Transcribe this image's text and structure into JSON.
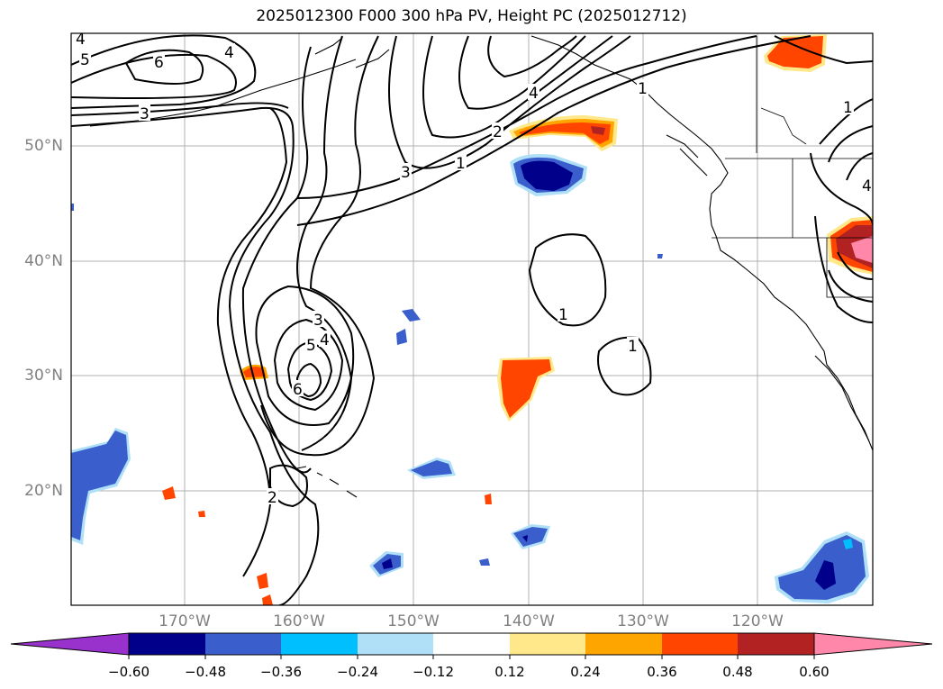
{
  "title": "2025012300 F000 300 hPa PV, Height PC (2025012712)",
  "lat_labels": [
    "50°N",
    "40°N",
    "30°N",
    "20°N"
  ],
  "lon_labels": [
    "170°W",
    "160°W",
    "150°W",
    "140°W",
    "130°W",
    "120°W"
  ],
  "colorbar": {
    "ticks": [
      "−0.60",
      "−0.48",
      "−0.36",
      "−0.24",
      "−0.12",
      "0.12",
      "0.24",
      "0.36",
      "0.48",
      "0.60"
    ],
    "colors": [
      "#9932cc",
      "#00008b",
      "#3a5fcd",
      "#00bfff",
      "#b0e0f8",
      "#ffffff",
      "#ffe88a",
      "#ffa500",
      "#ff4500",
      "#b22222",
      "#ff88aa"
    ]
  },
  "contour_labels": [
    "4",
    "5",
    "6",
    "4",
    "3",
    "4",
    "2",
    "1",
    "3",
    "1",
    "3",
    "4",
    "5",
    "6",
    "2",
    "1",
    "1",
    "1",
    "4"
  ]
}
